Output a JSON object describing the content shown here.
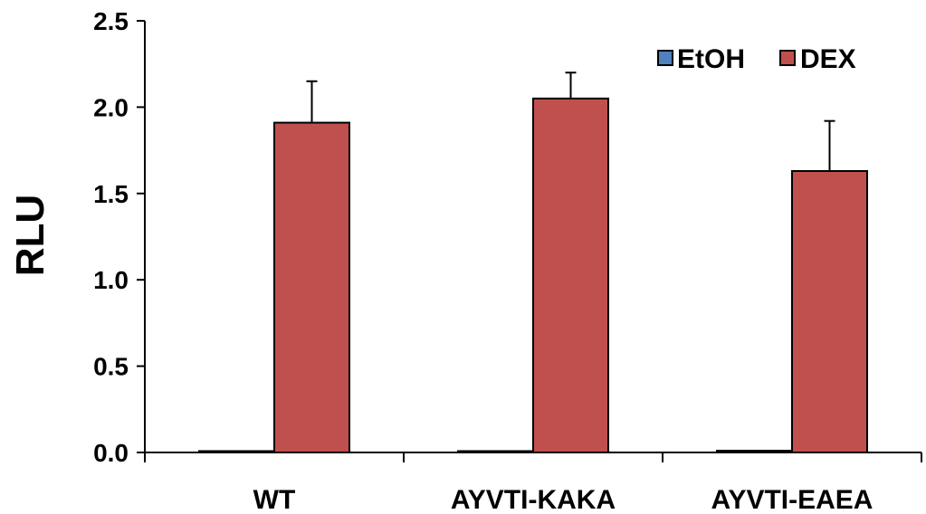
{
  "chart_data": {
    "type": "bar",
    "categories": [
      "WT",
      "AYVTI-KAKA",
      "AYVTI-EAEA"
    ],
    "series": [
      {
        "name": "EtOH",
        "values": [
          0.005,
          0.005,
          0.01
        ],
        "errors": [
          0,
          0,
          0
        ],
        "color": "#4F81BD"
      },
      {
        "name": "DEX",
        "values": [
          1.91,
          2.05,
          1.63
        ],
        "errors": [
          0.24,
          0.15,
          0.29
        ],
        "color": "#C0504D"
      }
    ],
    "ylabel": "RLU",
    "xlabel": "",
    "ylim": [
      0,
      2.5
    ],
    "yticks": [
      "0.0",
      "0.5",
      "1.0",
      "1.5",
      "2.0",
      "2.5"
    ],
    "grid": false,
    "legend_position": "top-right",
    "error_bars": "upper only"
  }
}
